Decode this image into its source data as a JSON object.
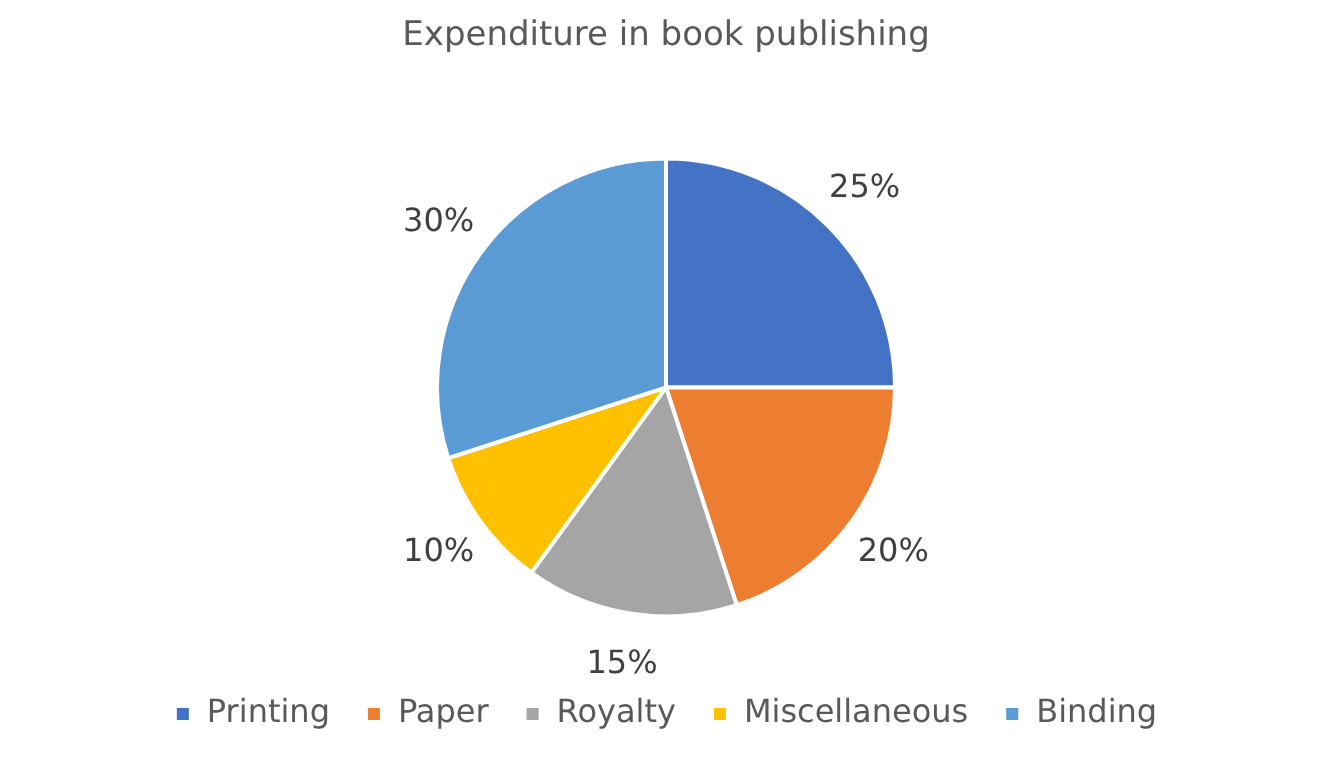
{
  "chart_data": {
    "type": "pie",
    "title": "Expenditure in book publishing",
    "categories": [
      "Printing",
      "Paper",
      "Royalty",
      "Miscellaneous",
      "Binding"
    ],
    "values": [
      25,
      20,
      15,
      10,
      30
    ],
    "value_labels": [
      "25%",
      "20%",
      "15%",
      "10%",
      "30%"
    ],
    "colors": [
      "#4472c4",
      "#ed7d31",
      "#a5a5a5",
      "#ffc000",
      "#5b9bd5"
    ],
    "legend": "bottom"
  }
}
